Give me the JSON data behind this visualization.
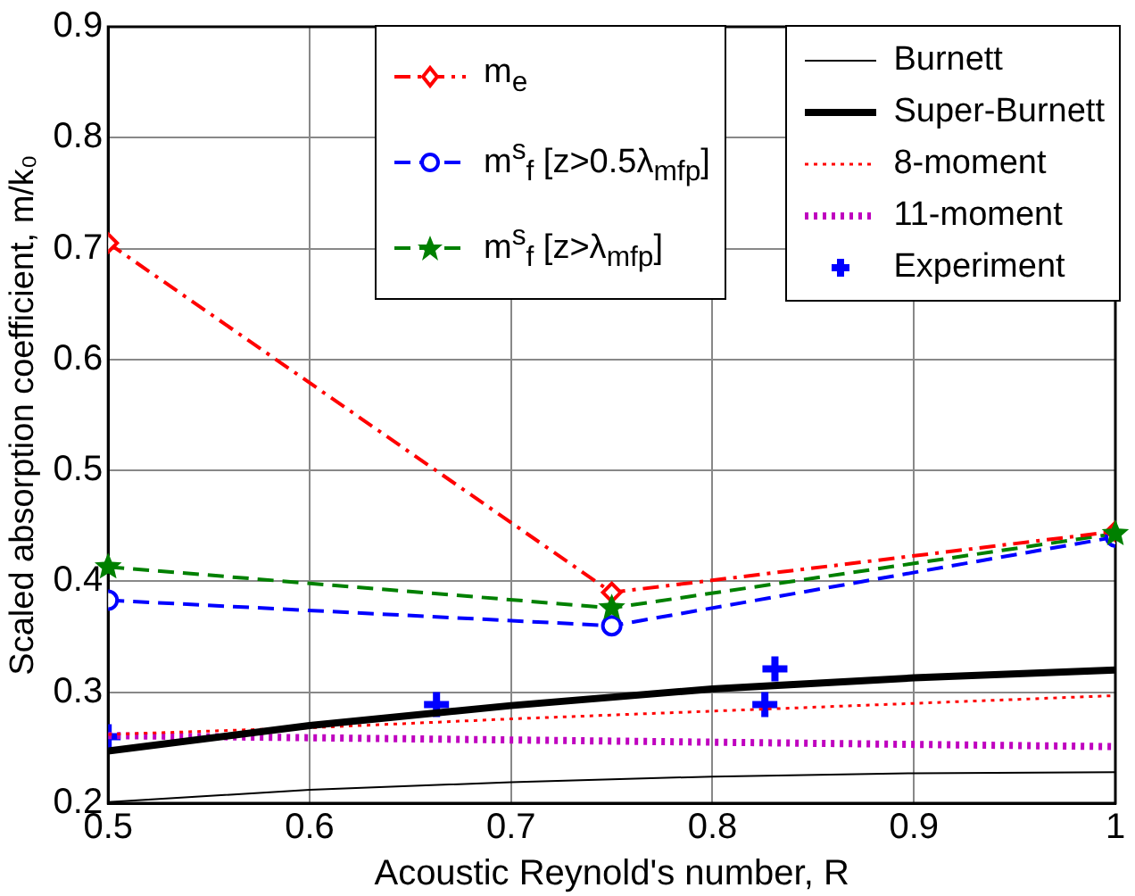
{
  "chart_data": {
    "type": "line",
    "xlabel": "Acoustic Reynold's number, R",
    "ylabel": "Scaled absorption coefficient, m/k₀",
    "xlim": [
      0.5,
      1
    ],
    "xticks": [
      0.5,
      0.6,
      0.7,
      0.8,
      0.9,
      {
        "value": 1,
        "label": "1"
      }
    ],
    "ylim": [
      0.2,
      0.9
    ],
    "yticks": [
      0.2,
      0.3,
      0.4,
      0.5,
      0.6,
      0.7,
      0.8,
      0.9
    ],
    "grid": true,
    "legend": "top right",
    "series": [
      {
        "name": "m$_{e}$",
        "color": "#ff0000",
        "x": [
          0.5,
          0.75,
          1
        ],
        "values": [
          0.705,
          0.39,
          0.445
        ],
        "marker": "diamond",
        "line_style": "dashdot"
      },
      {
        "name": "m$^{s}$$_{f}$ [z>0.5λ$_{mfp}$]",
        "color": "#0000ff",
        "x": [
          0.5,
          0.75,
          1
        ],
        "values": [
          0.383,
          0.36,
          0.44
        ],
        "marker": "circle",
        "line_style": "dashed"
      },
      {
        "name": "m$^{s}$$_{f}$ [z>λ$_{mfp}$]",
        "color": "#008000",
        "x": [
          0.5,
          0.75,
          1
        ],
        "values": [
          0.413,
          0.376,
          0.443
        ],
        "marker": "star",
        "line_style": "dashed"
      },
      {
        "name": "Burnett",
        "color": "#000000",
        "x": [
          0.5,
          0.6,
          0.7,
          0.8,
          0.9,
          1
        ],
        "values": [
          0.201,
          0.212,
          0.219,
          0.224,
          0.227,
          0.228
        ],
        "marker": "none",
        "line_style": "solid"
      },
      {
        "name": "Super-Burnett",
        "color": "#000000",
        "x": [
          0.5,
          0.6,
          0.7,
          0.8,
          0.9,
          1
        ],
        "values": [
          0.247,
          0.27,
          0.288,
          0.303,
          0.313,
          0.32
        ],
        "marker": "none",
        "line_style": "solid"
      },
      {
        "name": "8-moment",
        "color": "#ff0000",
        "x": [
          0.5,
          0.6,
          0.7,
          0.8,
          0.9,
          1
        ],
        "values": [
          0.262,
          0.268,
          0.276,
          0.283,
          0.29,
          0.297
        ],
        "marker": "none",
        "line_style": "dotted"
      },
      {
        "name": "11-moment",
        "color": "#bf00bf",
        "x": [
          0.5,
          0.6,
          0.7,
          0.8,
          0.9,
          1
        ],
        "values": [
          0.261,
          0.259,
          0.257,
          0.255,
          0.253,
          0.251
        ],
        "marker": "none",
        "line_style": "dotted"
      },
      {
        "name": "Experiment",
        "type": "scatter",
        "color": "#0000ff",
        "x": [
          0.5,
          0.663,
          0.826,
          0.831
        ],
        "values": [
          0.26,
          0.289,
          0.289,
          0.321
        ],
        "marker": "cross"
      }
    ]
  }
}
